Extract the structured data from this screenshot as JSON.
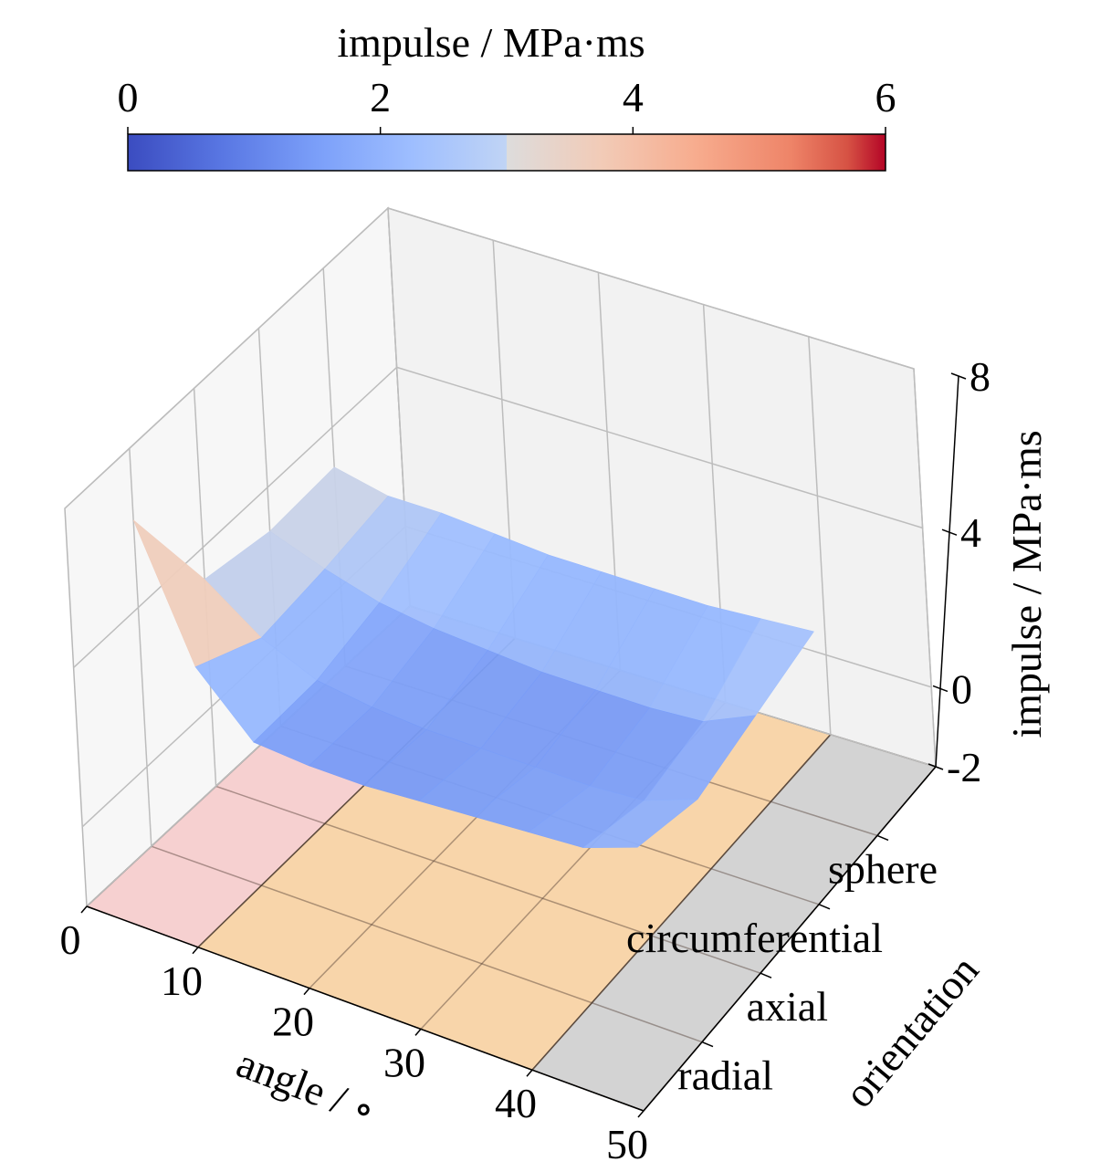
{
  "chart_data": {
    "type": "surface3d",
    "title": "",
    "colorbar": {
      "label": "impulse / MPa·ms",
      "range": [
        0,
        6
      ],
      "ticks": [
        0,
        2,
        4,
        6
      ],
      "tick_labels": [
        "0",
        "2",
        "4",
        "6"
      ],
      "colormap": "coolwarm",
      "placement": "top"
    },
    "x_axis": {
      "label": "angle / ∘",
      "range": [
        0,
        50
      ],
      "ticks": [
        0,
        10,
        20,
        30,
        40,
        50
      ],
      "tick_labels": [
        "0",
        "10",
        "20",
        "30",
        "40",
        "50"
      ]
    },
    "y_axis": {
      "label": "orientation",
      "range": [
        0,
        5
      ],
      "ticks": [
        1,
        2,
        3,
        4
      ],
      "tick_labels": [
        "radial",
        "axial",
        "circumferential",
        "sphere"
      ]
    },
    "z_axis": {
      "label": "impulse / MPa·ms",
      "range": [
        -2,
        8
      ],
      "ticks": [
        -2,
        0,
        4,
        8
      ],
      "tick_labels": [
        "-2",
        "0",
        "4",
        "8"
      ]
    },
    "grid": true,
    "floor_regions": [
      {
        "angle_range": [
          0,
          10
        ],
        "color": "#f6d0d0"
      },
      {
        "angle_range": [
          10,
          40
        ],
        "color": "#f8d5aa"
      },
      {
        "angle_range": [
          40,
          50
        ],
        "color": "#d3d3d3"
      }
    ],
    "x": [
      0,
      5,
      10,
      15,
      20,
      25,
      30,
      35,
      40,
      45
    ],
    "categories": [
      "radial",
      "axial",
      "circumferential",
      "sphere"
    ],
    "series": [
      {
        "name": "radial",
        "values": [
          6.2,
          3.0,
          1.6,
          1.5,
          1.5,
          1.6,
          1.7,
          1.8,
          1.9,
          2.4
        ]
      },
      {
        "name": "axial",
        "values": [
          3.2,
          2.2,
          1.6,
          1.4,
          1.3,
          1.3,
          1.3,
          1.3,
          1.4,
          1.9
        ]
      },
      {
        "name": "circumferential",
        "values": [
          2.9,
          2.4,
          2.0,
          1.8,
          1.7,
          1.6,
          1.6,
          1.6,
          1.7,
          2.3
        ]
      },
      {
        "name": "sphere",
        "values": [
          3.0,
          2.7,
          2.7,
          2.6,
          2.5,
          2.5,
          2.5,
          2.5,
          2.6,
          2.7
        ]
      }
    ]
  }
}
